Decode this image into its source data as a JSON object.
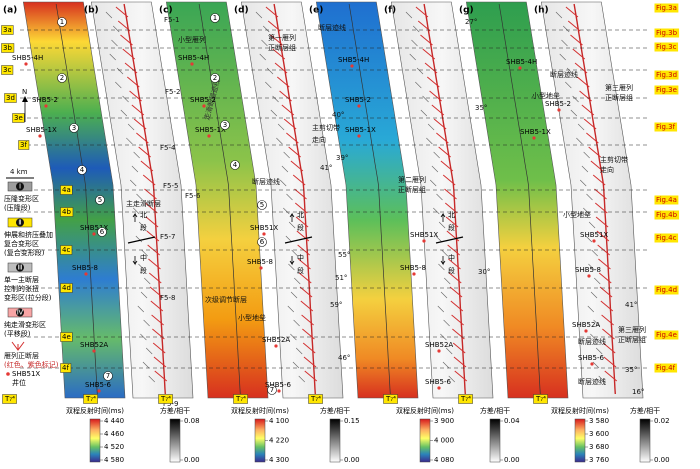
{
  "panels": [
    {
      "label": "(a)",
      "horizon": "T₇⁴",
      "texts": [
        "N",
        "4 km",
        "3a",
        "3b",
        "3c",
        "3d",
        "3e",
        "3f",
        "4a",
        "4b",
        "4c",
        "4d",
        "4e",
        "4f",
        "SHB5-4H",
        "SHB5-2",
        "SHB5-1X",
        "SHB51X",
        "SHB5-8",
        "SHB52A",
        "SHB5-6",
        "1",
        "2",
        "3",
        "4",
        "5",
        "6",
        "7"
      ]
    },
    {
      "label": "(b)",
      "horizon": "T₇⁴",
      "texts": [
        "F5-1",
        "F5-2",
        "F5-4",
        "F5-5",
        "F5-6",
        "F5-7",
        "F5-8",
        "F5-9",
        "主走滑断层",
        "次级调节断层"
      ]
    },
    {
      "label": "(c)",
      "horizon": "T₇⁴",
      "texts": [
        "小型雁列",
        "走滑断层迹线",
        "小型地垒",
        "SHB5-4H",
        "SHB5-2",
        "SHB5-1X",
        "SHB51X",
        "SHB5-8",
        "SHB52A",
        "SHB5-6",
        "1",
        "2",
        "3",
        "4",
        "5",
        "6",
        "7"
      ]
    },
    {
      "label": "(d)",
      "horizon": "T₇⁴",
      "texts": [
        "第一雁列",
        "正断层组",
        "断层迹线"
      ]
    },
    {
      "label": "(e)",
      "horizon": "T₇⁴",
      "texts": [
        "断层迹线",
        "主剪切带",
        "走向",
        "40°",
        "39°",
        "41°",
        "55°",
        "51°",
        "59°",
        "46°",
        "SHB5-4H",
        "SHB5-2",
        "SHB5-1X",
        "SHB51X",
        "SHB5-8",
        "SHB52A",
        "SHB5-6"
      ]
    },
    {
      "label": "(f)",
      "horizon": "T₇⁴",
      "texts": [
        "第二雁列",
        "正断层组",
        "27°",
        "35°",
        "30°"
      ]
    },
    {
      "label": "(g)",
      "horizon": "T₇⁴",
      "texts": [
        "断层迹线",
        "小型地垒",
        "小型地垒",
        "断层迹线",
        "断层迹线",
        "SHB5-4H",
        "SHB5-2",
        "SHB5-1X",
        "SHB51X",
        "SHB5-8",
        "SHB52A",
        "SHB5-6"
      ]
    },
    {
      "label": "(h)",
      "horizon": "T₇⁴",
      "texts": [
        "第三雁列",
        "正断层组",
        "主剪切带",
        "走向",
        "第三雁列",
        "正断层组",
        "41°",
        "35°",
        "16°"
      ]
    }
  ],
  "figure_refs": [
    "Fig.3a",
    "Fig.3b",
    "Fig.3c",
    "Fig.3d",
    "Fig.3e",
    "Fig.3f",
    "Fig.4a",
    "Fig.4b",
    "Fig.4c",
    "Fig.4d",
    "Fig.4e",
    "Fig.4f"
  ],
  "sections": [
    [
      "北",
      "段",
      "中",
      "段"
    ],
    [
      "北",
      "段",
      "中",
      "段"
    ],
    [
      "北",
      "段",
      "中",
      "段"
    ]
  ],
  "legend": {
    "items": [
      {
        "icon": "Ⅰ",
        "lines": [
          "压隆变形区",
          "(压隆段)"
        ]
      },
      {
        "icon": "Ⅱ",
        "lines": [
          "伸展和挤压叠加",
          "复合变形区",
          "(复合变形段)"
        ]
      },
      {
        "icon": "Ⅲ",
        "lines": [
          "单一主断层",
          "控制的张扭",
          "变形区(拉分段)"
        ]
      },
      {
        "icon": "Ⅳ",
        "lines": [
          "纯走滑变形区",
          "(平移段)"
        ]
      }
    ],
    "normal_fault": [
      "雁列正断层",
      "(红色、紫色标记)"
    ],
    "well": [
      "SHB51X",
      "井位"
    ]
  },
  "colorbars": [
    {
      "title": "双程反射时间(ms)",
      "ticks": [
        "4 440",
        "4 460",
        "4 520",
        "4 580"
      ]
    },
    {
      "title": "方差/相干",
      "ticks": [
        "0.08",
        "0.00"
      ]
    },
    {
      "title": "双程反射时间(ms)",
      "ticks": [
        "4 100",
        "4 220",
        "4 300"
      ]
    },
    {
      "title": "方差/相干",
      "ticks": [
        "0.15",
        "0.00"
      ]
    },
    {
      "title": "双程反射时间(ms)",
      "ticks": [
        "3 900",
        "4 000",
        "4 080"
      ]
    },
    {
      "title": "方差/相干",
      "ticks": [
        "0.04",
        "0.00"
      ]
    },
    {
      "title": "双程反射时间(ms)",
      "ticks": [
        "3 580",
        "3 600",
        "3 680",
        "3 760"
      ]
    },
    {
      "title": "方差/相干",
      "ticks": [
        "0.02",
        "0.00"
      ]
    }
  ]
}
